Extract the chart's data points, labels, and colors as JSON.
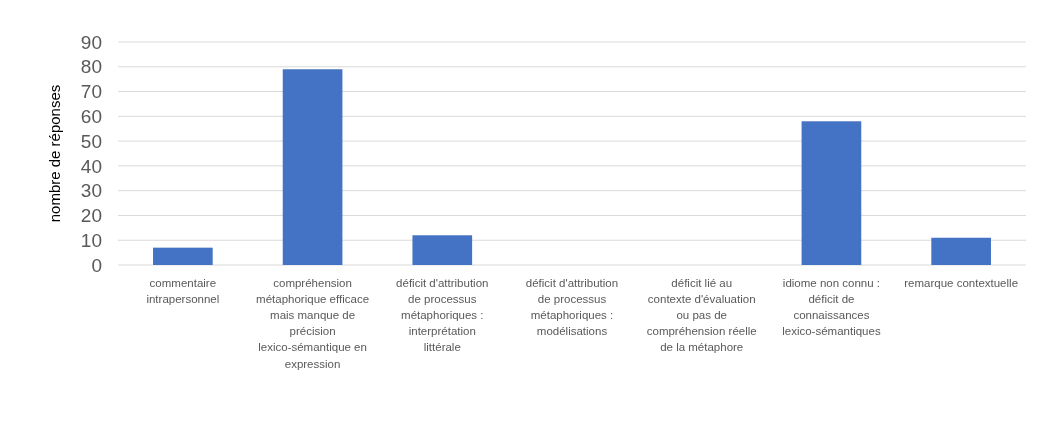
{
  "chart_data": {
    "type": "bar",
    "ylabel": "nombre de réponses",
    "categories": [
      "commentaire intrapersonnel",
      "compréhension métaphorique efficace mais manque de précision lexico-sémantique en expression",
      "déficit d'attribution de processus métaphoriques : interprétation littérale",
      "déficit d'attribution de processus métaphoriques : modélisations",
      "déficit lié au contexte d'évaluation ou pas de compréhension réelle de la métaphore",
      "idiome non connu : déficit de connaissances lexico-sémantiques",
      "remarque contextuelle"
    ],
    "values": [
      7,
      79,
      12,
      0,
      0,
      58,
      11
    ],
    "color": "#4472c4",
    "ylim": [
      0,
      90
    ],
    "yticks": [
      0,
      10,
      20,
      30,
      40,
      50,
      60,
      70,
      80,
      90
    ],
    "grid": "y"
  }
}
